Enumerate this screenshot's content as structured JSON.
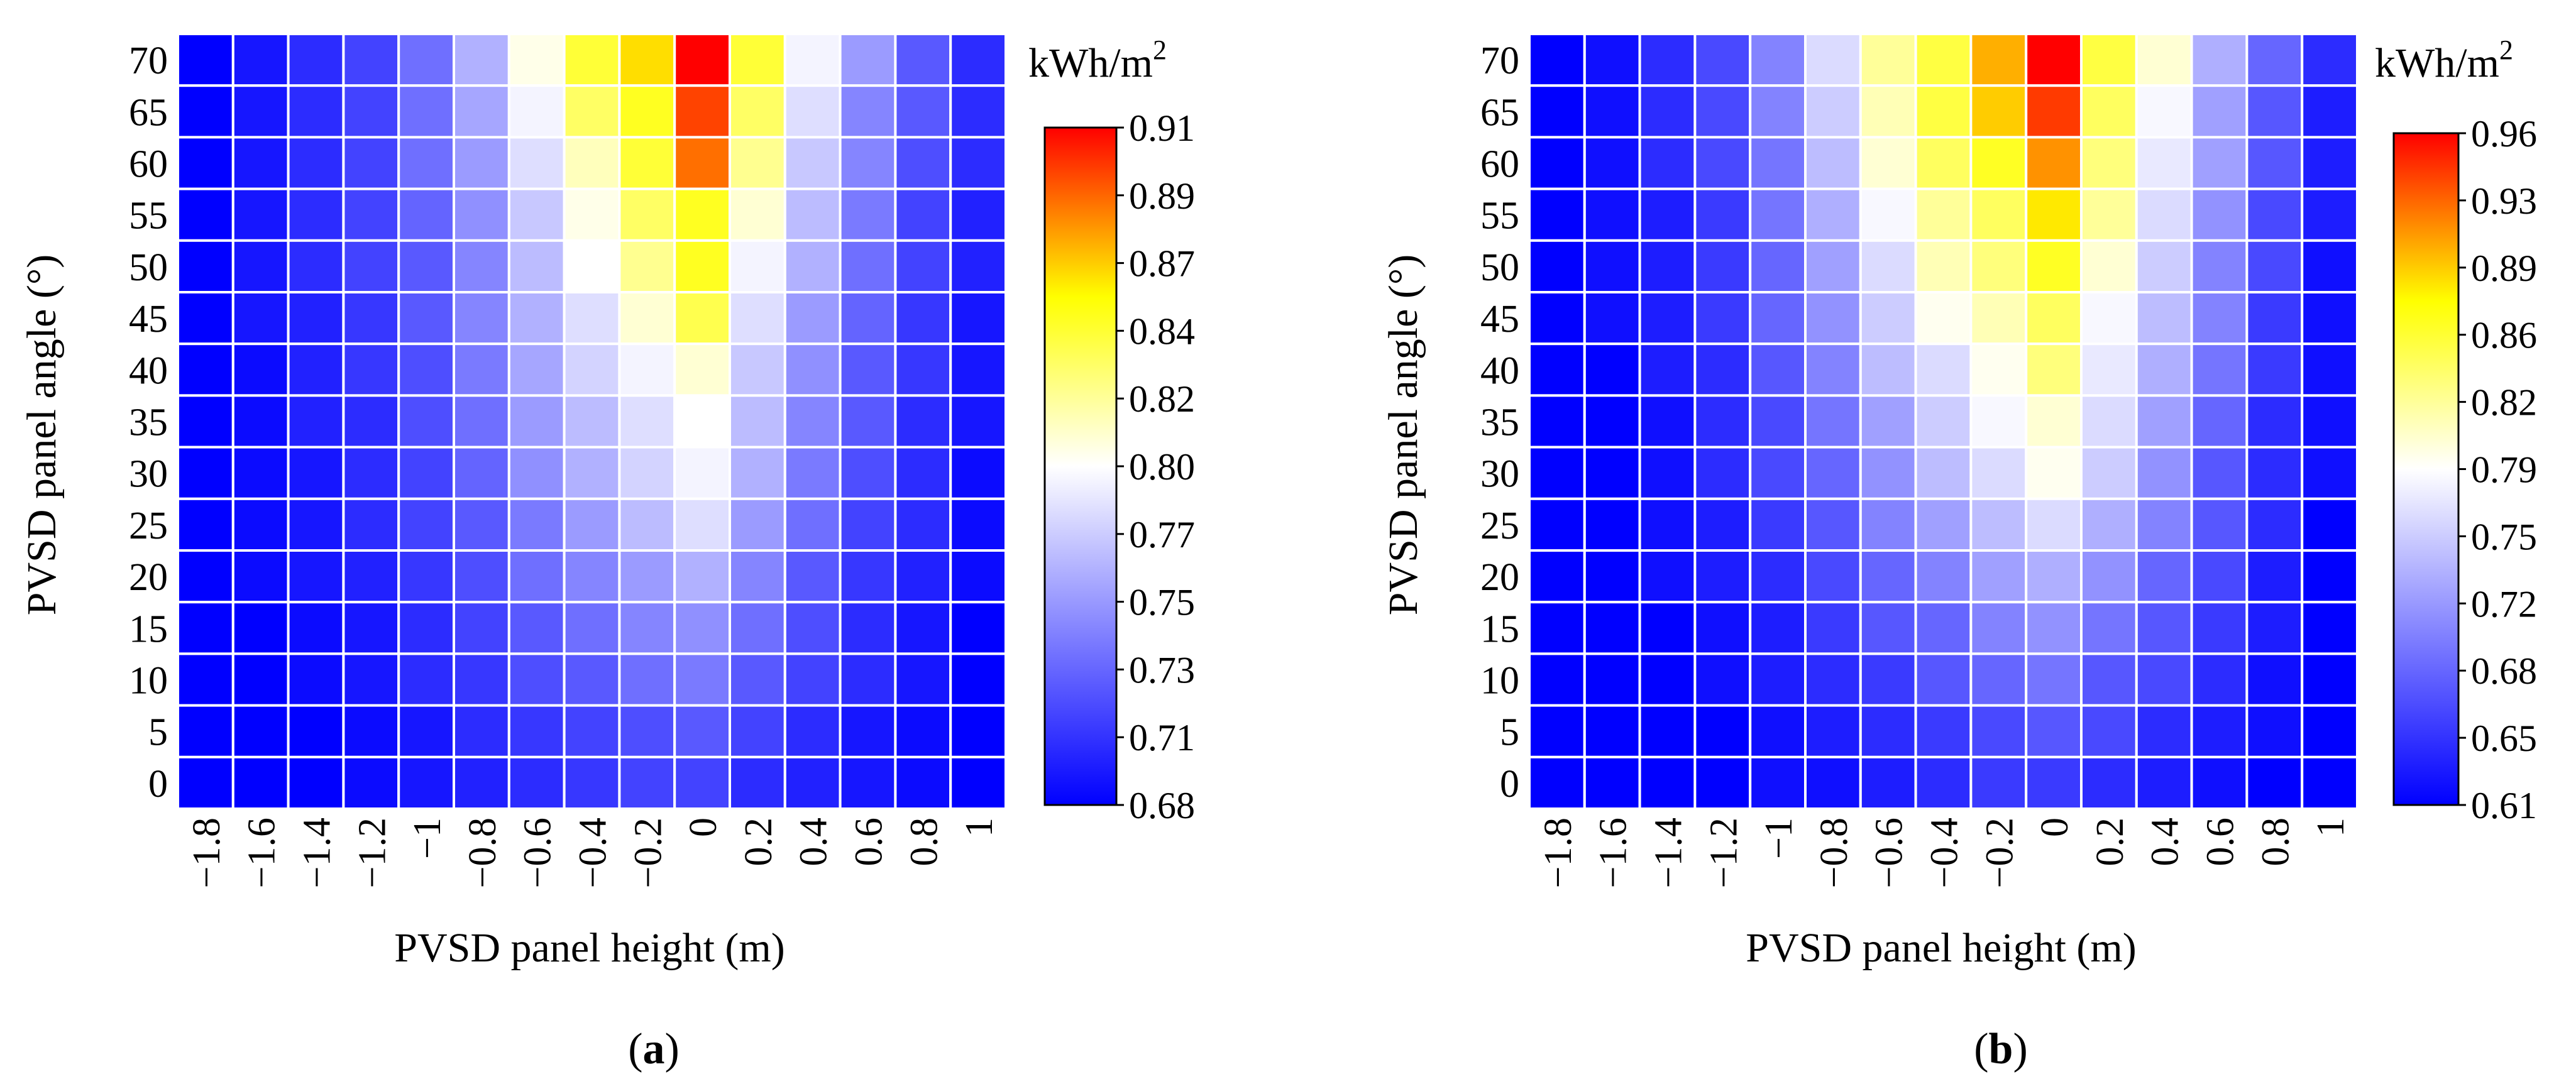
{
  "chart_data": [
    {
      "type": "heatmap",
      "panel_label": "a",
      "xlabel": "PVSD panel height (m)",
      "ylabel": "PVSD panel angle (°)",
      "x_ticks": [
        "−1.8",
        "−1.6",
        "−1.4",
        "−1.2",
        "−1",
        "−0.8",
        "−0.6",
        "−0.4",
        "−0.2",
        "0",
        "0.2",
        "0.4",
        "0.6",
        "0.8",
        "1"
      ],
      "y_ticks": [
        "0",
        "5",
        "10",
        "15",
        "20",
        "25",
        "30",
        "35",
        "40",
        "45",
        "50",
        "55",
        "60",
        "65",
        "70"
      ],
      "colorbar": {
        "unit_base": "kWh/m",
        "unit_exp": "2",
        "min": 0.68,
        "max": 0.91,
        "ticks": [
          "0.91",
          "0.89",
          "0.87",
          "0.84",
          "0.82",
          "0.80",
          "0.77",
          "0.75",
          "0.73",
          "0.71",
          "0.68"
        ]
      },
      "values_rows_top_to_bottom": [
        [
          0.68,
          0.69,
          0.7,
          0.71,
          0.73,
          0.76,
          0.8,
          0.84,
          0.86,
          0.91,
          0.84,
          0.79,
          0.75,
          0.72,
          0.7
        ],
        [
          0.68,
          0.69,
          0.7,
          0.71,
          0.73,
          0.755,
          0.79,
          0.83,
          0.845,
          0.895,
          0.83,
          0.78,
          0.74,
          0.72,
          0.7
        ],
        [
          0.68,
          0.69,
          0.7,
          0.71,
          0.73,
          0.75,
          0.78,
          0.81,
          0.84,
          0.885,
          0.82,
          0.77,
          0.74,
          0.715,
          0.7
        ],
        [
          0.68,
          0.69,
          0.7,
          0.71,
          0.725,
          0.745,
          0.77,
          0.8,
          0.83,
          0.845,
          0.805,
          0.765,
          0.735,
          0.71,
          0.695
        ],
        [
          0.68,
          0.69,
          0.7,
          0.71,
          0.72,
          0.74,
          0.765,
          0.795,
          0.82,
          0.845,
          0.79,
          0.76,
          0.73,
          0.71,
          0.695
        ],
        [
          0.68,
          0.69,
          0.695,
          0.705,
          0.72,
          0.74,
          0.76,
          0.78,
          0.805,
          0.835,
          0.78,
          0.75,
          0.725,
          0.705,
          0.69
        ],
        [
          0.68,
          0.685,
          0.695,
          0.705,
          0.715,
          0.735,
          0.755,
          0.775,
          0.79,
          0.805,
          0.77,
          0.745,
          0.72,
          0.705,
          0.69
        ],
        [
          0.68,
          0.685,
          0.695,
          0.7,
          0.715,
          0.73,
          0.75,
          0.765,
          0.78,
          0.795,
          0.765,
          0.74,
          0.72,
          0.7,
          0.69
        ],
        [
          0.68,
          0.685,
          0.69,
          0.7,
          0.71,
          0.725,
          0.745,
          0.76,
          0.775,
          0.79,
          0.76,
          0.735,
          0.715,
          0.7,
          0.685
        ],
        [
          0.68,
          0.685,
          0.69,
          0.7,
          0.71,
          0.72,
          0.735,
          0.75,
          0.765,
          0.78,
          0.75,
          0.73,
          0.71,
          0.7,
          0.685
        ],
        [
          0.68,
          0.685,
          0.69,
          0.695,
          0.705,
          0.715,
          0.73,
          0.74,
          0.75,
          0.76,
          0.74,
          0.72,
          0.705,
          0.695,
          0.685
        ],
        [
          0.68,
          0.68,
          0.685,
          0.69,
          0.7,
          0.71,
          0.72,
          0.73,
          0.74,
          0.745,
          0.73,
          0.715,
          0.7,
          0.69,
          0.68
        ],
        [
          0.68,
          0.68,
          0.685,
          0.69,
          0.7,
          0.705,
          0.715,
          0.72,
          0.73,
          0.735,
          0.72,
          0.71,
          0.7,
          0.69,
          0.68
        ],
        [
          0.68,
          0.68,
          0.68,
          0.685,
          0.69,
          0.7,
          0.705,
          0.71,
          0.715,
          0.72,
          0.71,
          0.7,
          0.69,
          0.685,
          0.68
        ],
        [
          0.68,
          0.68,
          0.68,
          0.685,
          0.69,
          0.695,
          0.7,
          0.705,
          0.71,
          0.71,
          0.7,
          0.695,
          0.69,
          0.685,
          0.68
        ]
      ]
    },
    {
      "type": "heatmap",
      "panel_label": "b",
      "xlabel": "PVSD panel height (m)",
      "ylabel": "PVSD panel angle (°)",
      "x_ticks": [
        "−1.8",
        "−1.6",
        "−1.4",
        "−1.2",
        "−1",
        "−0.8",
        "−0.6",
        "−0.4",
        "−0.2",
        "0",
        "0.2",
        "0.4",
        "0.6",
        "0.8",
        "1"
      ],
      "y_ticks": [
        "0",
        "5",
        "10",
        "15",
        "20",
        "25",
        "30",
        "35",
        "40",
        "45",
        "50",
        "55",
        "60",
        "65",
        "70"
      ],
      "colorbar": {
        "unit_base": "kWh/m",
        "unit_exp": "2",
        "min": 0.61,
        "max": 0.96,
        "ticks": [
          "0.96",
          "0.93",
          "0.89",
          "0.86",
          "0.82",
          "0.79",
          "0.75",
          "0.72",
          "0.68",
          "0.65",
          "0.61"
        ]
      },
      "values_rows_top_to_bottom": [
        [
          0.61,
          0.62,
          0.64,
          0.66,
          0.7,
          0.76,
          0.82,
          0.85,
          0.9,
          0.96,
          0.85,
          0.8,
          0.73,
          0.68,
          0.64
        ],
        [
          0.61,
          0.62,
          0.64,
          0.66,
          0.7,
          0.75,
          0.81,
          0.85,
          0.89,
          0.94,
          0.84,
          0.78,
          0.72,
          0.67,
          0.63
        ],
        [
          0.61,
          0.62,
          0.64,
          0.66,
          0.69,
          0.74,
          0.8,
          0.84,
          0.86,
          0.91,
          0.83,
          0.77,
          0.72,
          0.67,
          0.63
        ],
        [
          0.61,
          0.62,
          0.63,
          0.65,
          0.69,
          0.73,
          0.78,
          0.82,
          0.84,
          0.88,
          0.82,
          0.76,
          0.71,
          0.66,
          0.63
        ],
        [
          0.61,
          0.62,
          0.63,
          0.65,
          0.68,
          0.72,
          0.76,
          0.81,
          0.83,
          0.86,
          0.8,
          0.75,
          0.7,
          0.66,
          0.62
        ],
        [
          0.61,
          0.62,
          0.63,
          0.65,
          0.68,
          0.71,
          0.75,
          0.79,
          0.81,
          0.84,
          0.78,
          0.74,
          0.7,
          0.65,
          0.62
        ],
        [
          0.61,
          0.61,
          0.63,
          0.64,
          0.67,
          0.7,
          0.74,
          0.76,
          0.79,
          0.83,
          0.77,
          0.73,
          0.69,
          0.65,
          0.62
        ],
        [
          0.61,
          0.61,
          0.62,
          0.64,
          0.66,
          0.69,
          0.72,
          0.75,
          0.78,
          0.8,
          0.76,
          0.72,
          0.68,
          0.64,
          0.62
        ],
        [
          0.61,
          0.61,
          0.62,
          0.64,
          0.66,
          0.68,
          0.71,
          0.74,
          0.76,
          0.79,
          0.75,
          0.71,
          0.67,
          0.64,
          0.62
        ],
        [
          0.61,
          0.61,
          0.62,
          0.63,
          0.65,
          0.67,
          0.7,
          0.72,
          0.74,
          0.76,
          0.73,
          0.7,
          0.67,
          0.64,
          0.61
        ],
        [
          0.61,
          0.61,
          0.62,
          0.63,
          0.64,
          0.66,
          0.68,
          0.7,
          0.72,
          0.73,
          0.71,
          0.68,
          0.66,
          0.63,
          0.61
        ],
        [
          0.61,
          0.61,
          0.61,
          0.62,
          0.63,
          0.65,
          0.67,
          0.68,
          0.7,
          0.71,
          0.69,
          0.67,
          0.65,
          0.63,
          0.61
        ],
        [
          0.61,
          0.61,
          0.61,
          0.62,
          0.63,
          0.64,
          0.65,
          0.67,
          0.68,
          0.69,
          0.67,
          0.66,
          0.64,
          0.62,
          0.61
        ],
        [
          0.61,
          0.61,
          0.61,
          0.61,
          0.62,
          0.63,
          0.64,
          0.65,
          0.66,
          0.67,
          0.66,
          0.64,
          0.63,
          0.62,
          0.61
        ],
        [
          0.61,
          0.61,
          0.61,
          0.61,
          0.62,
          0.62,
          0.63,
          0.64,
          0.65,
          0.65,
          0.64,
          0.63,
          0.62,
          0.61,
          0.61
        ]
      ]
    }
  ],
  "colors": {
    "scale_low": "#0000ff",
    "scale_mid": "#ffffff",
    "scale_high_mid": "#ffff00",
    "scale_high": "#ff0000",
    "grid_line": "#ffffff"
  }
}
